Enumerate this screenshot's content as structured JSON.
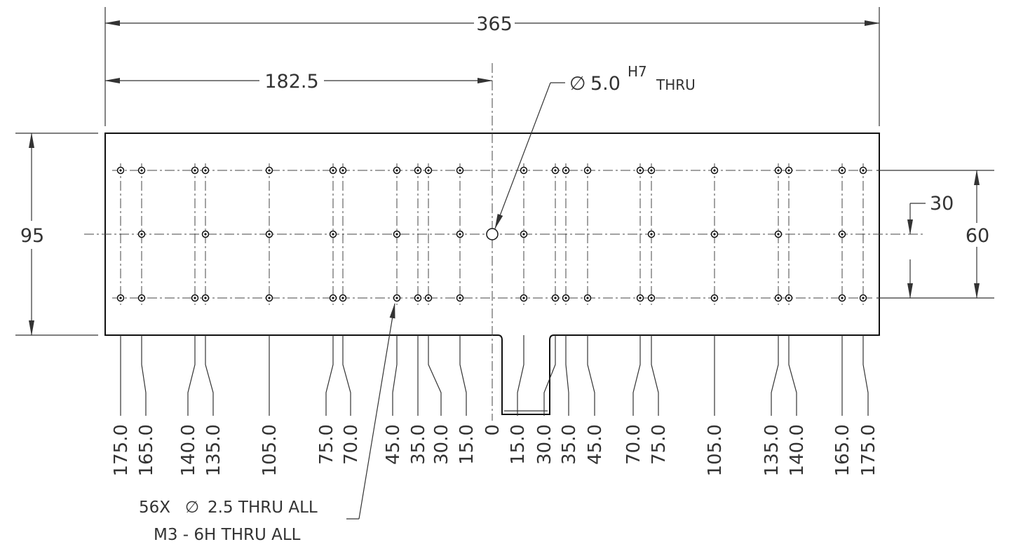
{
  "dimensions": {
    "overall_width": "365",
    "half_width": "182.5",
    "height": "95",
    "row_spacing": "30",
    "outer_row_spacing": "60"
  },
  "callouts": {
    "center_hole_symbol": "∅",
    "center_hole_size": "5.0",
    "center_hole_tolerance": "H7",
    "center_hole_depth": "THRU",
    "hole_count": "56X",
    "hole_symbol": "∅",
    "hole_spec": "2.5 THRU ALL",
    "thread_spec": "M3 - 6H THRU ALL"
  },
  "hole_columns": {
    "labels": [
      "175.0",
      "165.0",
      "140.0",
      "135.0",
      "105.0",
      "75.0",
      "70.0",
      "45.0",
      "35.0",
      "30.0",
      "15.0",
      "0",
      "15.0",
      "30.0",
      "35.0",
      "45.0",
      "70.0",
      "75.0",
      "105.0",
      "135.0",
      "140.0",
      "165.0",
      "175.0"
    ]
  }
}
